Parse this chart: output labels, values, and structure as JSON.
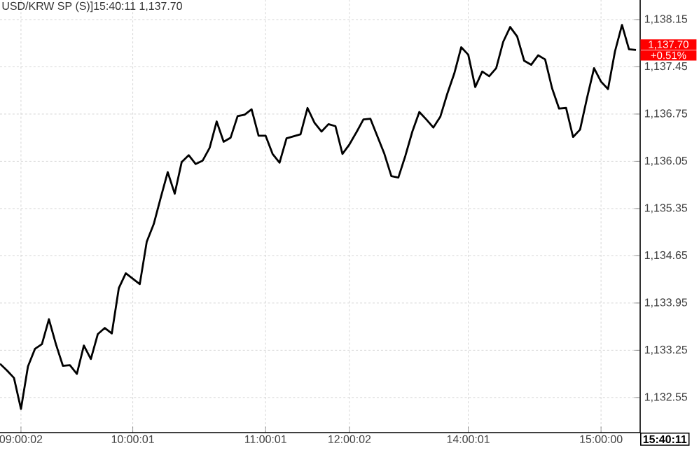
{
  "chart_data": {
    "type": "line",
    "title": "USD/KRW SP (S)]15:40:11  1,137.70",
    "annotations": [
      "1,137.70",
      "+0.51%",
      "15:40:11"
    ],
    "categories": [
      null,
      null,
      null,
      "09:00:02",
      null,
      null,
      null,
      null,
      null,
      null,
      null,
      null,
      null,
      null,
      null,
      null,
      null,
      null,
      null,
      "10:00:01",
      null,
      null,
      null,
      null,
      null,
      null,
      null,
      null,
      null,
      null,
      null,
      null,
      null,
      null,
      null,
      null,
      null,
      null,
      "11:00:01",
      null,
      null,
      null,
      null,
      null,
      null,
      null,
      null,
      null,
      null,
      null,
      "12:00:02",
      null,
      null,
      null,
      null,
      null,
      null,
      null,
      null,
      null,
      null,
      null,
      null,
      null,
      null,
      null,
      null,
      "14:00:01",
      null,
      null,
      null,
      null,
      null,
      null,
      null,
      null,
      null,
      null,
      null,
      null,
      null,
      null,
      null,
      null,
      null,
      null,
      "15:00:00",
      null,
      null,
      null,
      null,
      null
    ],
    "values": [
      1133.05,
      1132.95,
      1132.84,
      1132.38,
      1133.01,
      1133.27,
      1133.34,
      1133.71,
      1133.34,
      1133.02,
      1133.03,
      1132.9,
      1133.32,
      1133.12,
      1133.49,
      1133.58,
      1133.5,
      1134.17,
      1134.39,
      1134.31,
      1134.23,
      1134.86,
      1135.12,
      1135.51,
      1135.89,
      1135.57,
      1136.04,
      1136.14,
      1136.01,
      1136.06,
      1136.25,
      1136.64,
      1136.34,
      1136.4,
      1136.72,
      1136.74,
      1136.82,
      1136.43,
      1136.43,
      1136.16,
      1136.03,
      1136.39,
      1136.42,
      1136.45,
      1136.84,
      1136.62,
      1136.49,
      1136.6,
      1136.57,
      1136.16,
      1136.3,
      1136.48,
      1136.67,
      1136.68,
      1136.42,
      1136.16,
      1135.83,
      1135.81,
      1136.13,
      1136.49,
      1136.78,
      1136.67,
      1136.55,
      1136.71,
      1137.05,
      1137.35,
      1137.74,
      1137.63,
      1137.15,
      1137.38,
      1137.31,
      1137.43,
      1137.82,
      1138.04,
      1137.9,
      1137.54,
      1137.48,
      1137.62,
      1137.56,
      1137.13,
      1136.83,
      1136.84,
      1136.41,
      1136.52,
      1136.99,
      1137.43,
      1137.23,
      1137.12,
      1137.68,
      1138.07,
      1137.71,
      1137.7
    ],
    "color": "#000000",
    "ylim": [
      1132.03,
      1138.44
    ],
    "yticks": [
      {
        "value": 1132.55,
        "label": "1,132.55"
      },
      {
        "value": 1133.25,
        "label": "1,133.25"
      },
      {
        "value": 1133.95,
        "label": "1,133.95"
      },
      {
        "value": 1134.65,
        "label": "1,134.65"
      },
      {
        "value": 1135.35,
        "label": "1,135.35"
      },
      {
        "value": 1136.05,
        "label": "1,136.05"
      },
      {
        "value": 1136.75,
        "label": "1,136.75"
      },
      {
        "value": 1137.45,
        "label": "1,137.45"
      },
      {
        "value": 1138.15,
        "label": "1,138.15"
      }
    ],
    "grid": true
  }
}
